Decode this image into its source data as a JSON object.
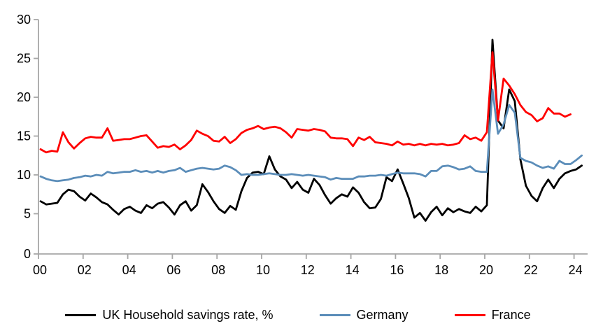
{
  "chart_data": {
    "type": "line",
    "title": "",
    "x_start_year": 2000,
    "points_per_year": 4,
    "ylim": [
      0,
      30
    ],
    "y_ticks": [
      0,
      5,
      10,
      15,
      20,
      25,
      30
    ],
    "x_tick_years": [
      2000,
      2002,
      2004,
      2006,
      2008,
      2010,
      2012,
      2014,
      2016,
      2018,
      2020,
      2022,
      2024
    ],
    "x_tick_labels": [
      "00",
      "02",
      "04",
      "06",
      "08",
      "10",
      "12",
      "14",
      "16",
      "18",
      "20",
      "22",
      "24"
    ],
    "grid": false,
    "legend_position": "bottom",
    "series": [
      {
        "key": "uk",
        "name": "UK Household savings rate, %",
        "color": "#000000",
        "values": [
          6.6,
          6.2,
          6.3,
          6.4,
          7.5,
          8.1,
          7.9,
          7.2,
          6.7,
          7.6,
          7.1,
          6.5,
          6.2,
          5.5,
          4.9,
          5.6,
          5.9,
          5.4,
          5.1,
          6.1,
          5.7,
          6.3,
          6.5,
          5.8,
          4.9,
          6.1,
          6.6,
          5.4,
          6.1,
          8.8,
          7.8,
          6.6,
          5.6,
          5.1,
          6.0,
          5.5,
          7.9,
          9.6,
          10.3,
          10.4,
          10.1,
          12.4,
          10.7,
          9.8,
          9.4,
          8.3,
          9.1,
          8.1,
          7.7,
          9.5,
          8.7,
          7.4,
          6.3,
          7.0,
          7.5,
          7.2,
          8.4,
          7.7,
          6.5,
          5.7,
          5.8,
          6.9,
          9.7,
          9.2,
          10.7,
          8.9,
          7.0,
          4.5,
          5.1,
          4.1,
          5.2,
          5.9,
          4.8,
          5.7,
          5.2,
          5.6,
          5.3,
          5.1,
          5.9,
          5.3,
          6.1,
          27.4,
          17.0,
          16.0,
          21.0,
          19.5,
          12.0,
          8.6,
          7.3,
          6.6,
          8.3,
          9.4,
          8.3,
          9.5,
          10.2,
          10.5,
          10.7,
          11.2
        ]
      },
      {
        "key": "germany",
        "name": "Germany",
        "color": "#5B8DB9",
        "values": [
          9.8,
          9.5,
          9.3,
          9.2,
          9.3,
          9.4,
          9.6,
          9.7,
          9.9,
          9.8,
          10.0,
          9.9,
          10.4,
          10.2,
          10.3,
          10.4,
          10.4,
          10.6,
          10.4,
          10.5,
          10.3,
          10.5,
          10.3,
          10.5,
          10.6,
          10.9,
          10.4,
          10.6,
          10.8,
          10.9,
          10.8,
          10.7,
          10.8,
          11.2,
          11.0,
          10.6,
          10.0,
          10.1,
          10.0,
          10.0,
          10.1,
          10.2,
          10.1,
          10.0,
          10.0,
          10.1,
          10.0,
          9.9,
          10.0,
          9.9,
          9.8,
          9.7,
          9.4,
          9.6,
          9.5,
          9.5,
          9.5,
          9.8,
          9.8,
          9.9,
          9.9,
          10.0,
          9.9,
          10.1,
          10.3,
          10.2,
          10.2,
          10.2,
          10.1,
          9.8,
          10.5,
          10.5,
          11.1,
          11.2,
          11.0,
          10.7,
          10.8,
          11.1,
          10.5,
          10.4,
          10.4,
          21.0,
          15.3,
          16.5,
          19.0,
          18.0,
          12.2,
          11.8,
          11.6,
          11.2,
          10.9,
          11.1,
          10.8,
          11.8,
          11.4,
          11.4,
          11.9,
          12.5
        ]
      },
      {
        "key": "france",
        "name": "France",
        "color": "#FF0000",
        "values": [
          13.3,
          12.9,
          13.1,
          13.0,
          15.5,
          14.2,
          13.4,
          14.1,
          14.7,
          14.9,
          14.8,
          14.8,
          16.0,
          14.4,
          14.5,
          14.6,
          14.6,
          14.8,
          15.0,
          15.1,
          14.3,
          13.5,
          13.7,
          13.6,
          13.9,
          13.3,
          13.8,
          14.5,
          15.7,
          15.3,
          15.0,
          14.4,
          14.3,
          14.9,
          14.1,
          14.6,
          15.4,
          15.8,
          16.0,
          16.3,
          15.9,
          16.1,
          16.2,
          16.0,
          15.5,
          14.8,
          15.9,
          15.8,
          15.7,
          15.9,
          15.8,
          15.6,
          14.8,
          14.7,
          14.7,
          14.6,
          13.7,
          14.8,
          14.5,
          14.9,
          14.2,
          14.1,
          14.0,
          13.8,
          14.3,
          13.9,
          14.0,
          13.8,
          14.0,
          13.8,
          14.0,
          13.9,
          14.0,
          13.8,
          13.9,
          14.1,
          15.1,
          14.6,
          14.8,
          14.4,
          15.5,
          25.8,
          17.0,
          22.4,
          21.5,
          20.4,
          19.0,
          18.1,
          17.7,
          16.9,
          17.3,
          18.6,
          17.9,
          17.9,
          17.5,
          17.8
        ]
      }
    ]
  },
  "legend": {
    "uk": "UK Household savings rate, %",
    "germany": "Germany",
    "france": "France"
  },
  "colors": {
    "uk": "#000000",
    "germany": "#5B8DB9",
    "france": "#FF0000",
    "axis": "#A6A6A6",
    "text": "#000000",
    "background": "#FFFFFF"
  }
}
